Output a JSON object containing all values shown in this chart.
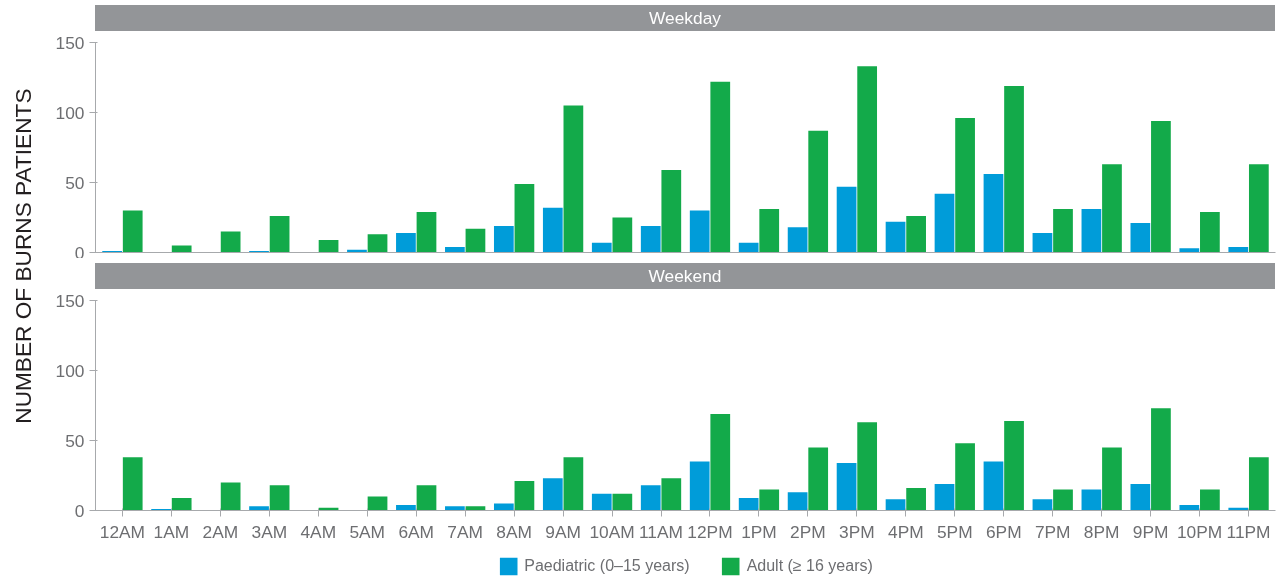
{
  "chart_data": [
    {
      "type": "bar",
      "title": "Weekday",
      "ylabel": "NUMBER OF BURNS PATIENTS",
      "categories": [
        null,
        null,
        null,
        null,
        null,
        null,
        null,
        null,
        null,
        null,
        null,
        null,
        null,
        null,
        null,
        null,
        null,
        null,
        null,
        null,
        null,
        null,
        null,
        null
      ],
      "series": [
        {
          "name": "Paediatric (0–15 years)",
          "color": "#009cd9",
          "values": [
            1,
            0,
            0,
            1,
            0,
            2,
            14,
            4,
            19,
            32,
            7,
            19,
            30,
            7,
            18,
            47,
            22,
            42,
            56,
            14,
            31,
            21,
            3,
            4
          ]
        },
        {
          "name": "Adult (≥ 16 years)",
          "color": "#13aa4a",
          "values": [
            30,
            5,
            15,
            26,
            9,
            13,
            29,
            17,
            49,
            105,
            25,
            59,
            122,
            31,
            87,
            133,
            26,
            96,
            119,
            31,
            63,
            94,
            29,
            63
          ]
        }
      ],
      "ylim": [
        0,
        150
      ],
      "yticks": [
        0,
        50,
        100,
        150
      ],
      "grid": false,
      "tick_labels": "y",
      "legend": "bottom"
    },
    {
      "type": "bar",
      "title": "Weekend",
      "categories": [
        "12AM",
        "1AM",
        "2AM",
        "3AM",
        "4AM",
        "5AM",
        "6AM",
        "7AM",
        "8AM",
        "9AM",
        "10AM",
        "11AM",
        "12PM",
        "1PM",
        "2PM",
        "3PM",
        "4PM",
        "5PM",
        "6PM",
        "7PM",
        "8PM",
        "9PM",
        "10PM",
        "11PM"
      ],
      "series": [
        {
          "color": "#009cd9",
          "values": [
            0,
            1,
            0,
            3,
            0,
            0,
            4,
            3,
            5,
            23,
            12,
            18,
            35,
            9,
            13,
            34,
            8,
            19,
            35,
            8,
            15,
            19,
            4,
            2
          ]
        },
        {
          "color": "#13aa4a",
          "values": [
            38,
            9,
            20,
            18,
            2,
            10,
            18,
            3,
            21,
            38,
            12,
            23,
            69,
            15,
            45,
            63,
            16,
            48,
            64,
            15,
            45,
            73,
            15,
            38
          ]
        }
      ],
      "ylim": [
        0,
        150
      ],
      "yticks": [
        0,
        50,
        100,
        150
      ],
      "grid": false
    }
  ]
}
